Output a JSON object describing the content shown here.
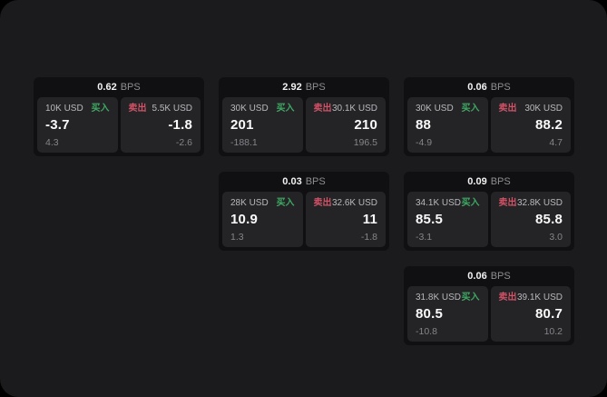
{
  "meta": {
    "unit_label": "BPS",
    "buy_label": "买入",
    "sell_label": "卖出",
    "colors": {
      "buy": "#3fa963",
      "sell": "#cf5266",
      "surface": "#1b1b1d",
      "card": "#101012",
      "panel": "#242427"
    }
  },
  "cards": [
    {
      "bps": "0.62",
      "buy": {
        "amount": "10K USD",
        "value": "-3.7",
        "sub": "4.3"
      },
      "sell": {
        "amount": "5.5K USD",
        "value": "-1.8",
        "sub": "-2.6"
      }
    },
    {
      "bps": "2.92",
      "buy": {
        "amount": "30K USD",
        "value": "201",
        "sub": "-188.1"
      },
      "sell": {
        "amount": "30.1K USD",
        "value": "210",
        "sub": "196.5"
      }
    },
    {
      "bps": "0.06",
      "buy": {
        "amount": "30K USD",
        "value": "88",
        "sub": "-4.9"
      },
      "sell": {
        "amount": "30K USD",
        "value": "88.2",
        "sub": "4.7"
      }
    },
    {
      "bps": "0.03",
      "buy": {
        "amount": "28K USD",
        "value": "10.9",
        "sub": "1.3"
      },
      "sell": {
        "amount": "32.6K USD",
        "value": "11",
        "sub": "-1.8"
      }
    },
    {
      "bps": "0.09",
      "buy": {
        "amount": "34.1K USD",
        "value": "85.5",
        "sub": "-3.1"
      },
      "sell": {
        "amount": "32.8K USD",
        "value": "85.8",
        "sub": "3.0"
      }
    },
    {
      "bps": "0.06",
      "buy": {
        "amount": "31.8K USD",
        "value": "80.5",
        "sub": "-10.8"
      },
      "sell": {
        "amount": "39.1K USD",
        "value": "80.7",
        "sub": "10.2"
      }
    }
  ]
}
